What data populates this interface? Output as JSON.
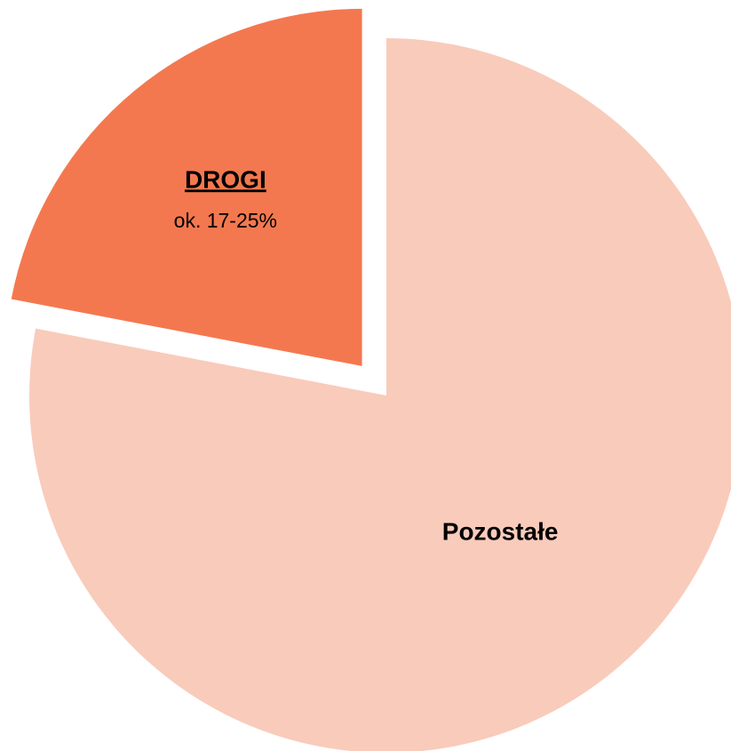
{
  "chart_data": {
    "type": "pie",
    "categories": [
      "DROGI",
      "Pozostałe"
    ],
    "values": [
      22,
      78
    ],
    "value_labels": [
      "ok. 17-25%",
      null
    ],
    "colors": [
      "#f4784f",
      "#f9cbbb"
    ],
    "explode": [
      true,
      false
    ]
  }
}
